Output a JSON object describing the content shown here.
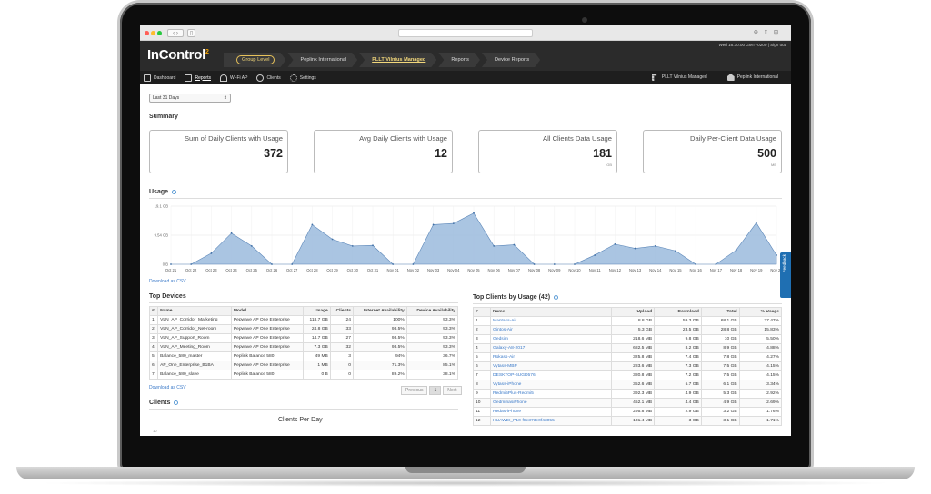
{
  "header": {
    "logo": "InControl",
    "logo_sup": "2",
    "top_status": "Wed 16:30:00 GMT+0200 | Sign out",
    "breadcrumbs": [
      "Group Level",
      "Peplink International",
      "PLLT Vilnius Managed",
      "Reports",
      "Device Reports"
    ]
  },
  "nav": {
    "left": [
      "Dashboard",
      "Reports",
      "Wi-Fi AP",
      "Clients",
      "Settings"
    ],
    "right": [
      "PLLT Vilnius Managed",
      "Peplink International"
    ]
  },
  "filter": {
    "range": "Last 31 Days"
  },
  "summary": {
    "title": "Summary",
    "cards": [
      {
        "title": "Sum of Daily Clients with Usage",
        "value": "372",
        "unit": ""
      },
      {
        "title": "Avg Daily Clients with Usage",
        "value": "12",
        "unit": ""
      },
      {
        "title": "All Clients Data Usage",
        "value": "181",
        "unit": "GB"
      },
      {
        "title": "Daily Per-Client Data Usage",
        "value": "500",
        "unit": "MB"
      }
    ]
  },
  "usage": {
    "title": "Usage",
    "download_csv": "Download as CSV"
  },
  "chart_data": {
    "type": "area",
    "title": "",
    "x": [
      "Oct 21",
      "Oct 22",
      "Oct 23",
      "Oct 24",
      "Oct 25",
      "Oct 26",
      "Oct 27",
      "Oct 28",
      "Oct 29",
      "Oct 30",
      "Oct 31",
      "Nov 01",
      "Nov 02",
      "Nov 03",
      "Nov 04",
      "Nov 05",
      "Nov 06",
      "Nov 07",
      "Nov 08",
      "Nov 09",
      "Nov 10",
      "Nov 11",
      "Nov 12",
      "Nov 13",
      "Nov 14",
      "Nov 15",
      "Nov 16",
      "Nov 17",
      "Nov 18",
      "Nov 19",
      "Nov 20"
    ],
    "values": [
      0,
      0,
      3.6,
      10.2,
      6.0,
      0,
      0,
      13.0,
      8.2,
      6.0,
      6.2,
      0,
      0,
      13.0,
      13.4,
      16.8,
      6.0,
      6.4,
      0,
      0,
      0,
      3.0,
      6.6,
      5.2,
      6.0,
      4.4,
      0,
      0,
      4.6,
      13.6,
      3.0
    ],
    "yticks": [
      "0 B",
      "9.54 GB",
      "19.1 GB"
    ],
    "ylim": [
      0,
      19.1
    ],
    "grid": true,
    "color": "#9bbbdd"
  },
  "top_devices": {
    "title": "Top Devices",
    "columns": [
      "#",
      "Name",
      "Model",
      "Usage",
      "Clients",
      "Internet Availability",
      "Device Availability"
    ],
    "rows": [
      [
        "1",
        "VLN_AP_Corridor_Marketing",
        "Pepwave AP One Enterprise",
        "118.7 GB",
        "24",
        "100%",
        "93.3%"
      ],
      [
        "2",
        "VLN_AP_Corridor_Net-room",
        "Pepwave AP One Enterprise",
        "24.8 GB",
        "33",
        "98.5%",
        "93.3%"
      ],
      [
        "3",
        "VLN_AP_Support_Room",
        "Pepwave AP One Enterprise",
        "14.7 GB",
        "27",
        "98.5%",
        "93.3%"
      ],
      [
        "4",
        "VLN_AP_Meeting_Room",
        "Pepwave AP One Enterprise",
        "7.3 GB",
        "32",
        "98.5%",
        "93.3%"
      ],
      [
        "5",
        "Balance_580_master",
        "Peplink Balance 580",
        "49 MB",
        "3",
        "94%",
        "36.7%"
      ],
      [
        "6",
        "AP_One_Enterprise_B1BA",
        "Pepwave AP One Enterprise",
        "1 MB",
        "0",
        "71.3%",
        "85.1%"
      ],
      [
        "7",
        "Balance_580_slave",
        "Peplink Balance 580",
        "0 B",
        "0",
        "89.2%",
        "38.1%"
      ]
    ],
    "download_csv": "Download as CSV",
    "pager": {
      "prev": "Previous",
      "page": "1",
      "next": "Next"
    }
  },
  "top_clients": {
    "title": "Top Clients by Usage (42)",
    "columns": [
      "#",
      "Name",
      "Upload",
      "Download",
      "Total",
      "% Usage"
    ],
    "rows": [
      [
        "1",
        "Mantass-Air",
        "8.8 GB",
        "59.3 GB",
        "68.1 GB",
        "37.47%"
      ],
      [
        "2",
        "Gintos-Air",
        "5.3 GB",
        "23.5 GB",
        "28.8 GB",
        "15.83%"
      ],
      [
        "3",
        "Gedsim",
        "218.6 MB",
        "9.8 GB",
        "10 GB",
        "5.50%"
      ],
      [
        "4",
        "Galaxy-A8-2017",
        "682.5 MB",
        "8.2 GB",
        "8.9 GB",
        "4.88%"
      ],
      [
        "5",
        "Rokass-Air",
        "325.8 MB",
        "7.4 GB",
        "7.8 GB",
        "4.27%"
      ],
      [
        "6",
        "Vytass-MBP",
        "283.6 MB",
        "7.3 GB",
        "7.5 GB",
        "4.15%"
      ],
      [
        "7",
        "DESKTOP-6UGD576",
        "380.8 MB",
        "7.2 GB",
        "7.5 GB",
        "4.15%"
      ],
      [
        "8",
        "Vytass-iPhone",
        "352.6 MB",
        "5.7 GB",
        "6.1 GB",
        "3.34%"
      ],
      [
        "9",
        "Redmi5Plus-Redmi5",
        "392.3 MB",
        "4.9 GB",
        "5.3 GB",
        "2.92%"
      ],
      [
        "10",
        "GedminasiPhone",
        "452.1 MB",
        "4.4 GB",
        "4.9 GB",
        "2.69%"
      ],
      [
        "11",
        "Redas-iPhone",
        "295.8 MB",
        "2.9 GB",
        "3.2 GB",
        "1.76%"
      ],
      [
        "12",
        "HUAWEI_P10-f8e373e0f43055",
        "131.4 MB",
        "3 GB",
        "3.1 GB",
        "1.71%"
      ]
    ]
  },
  "clients": {
    "title": "Clients",
    "chart_title": "Clients Per Day",
    "first_tick": "10"
  },
  "feedback": "Feedback"
}
